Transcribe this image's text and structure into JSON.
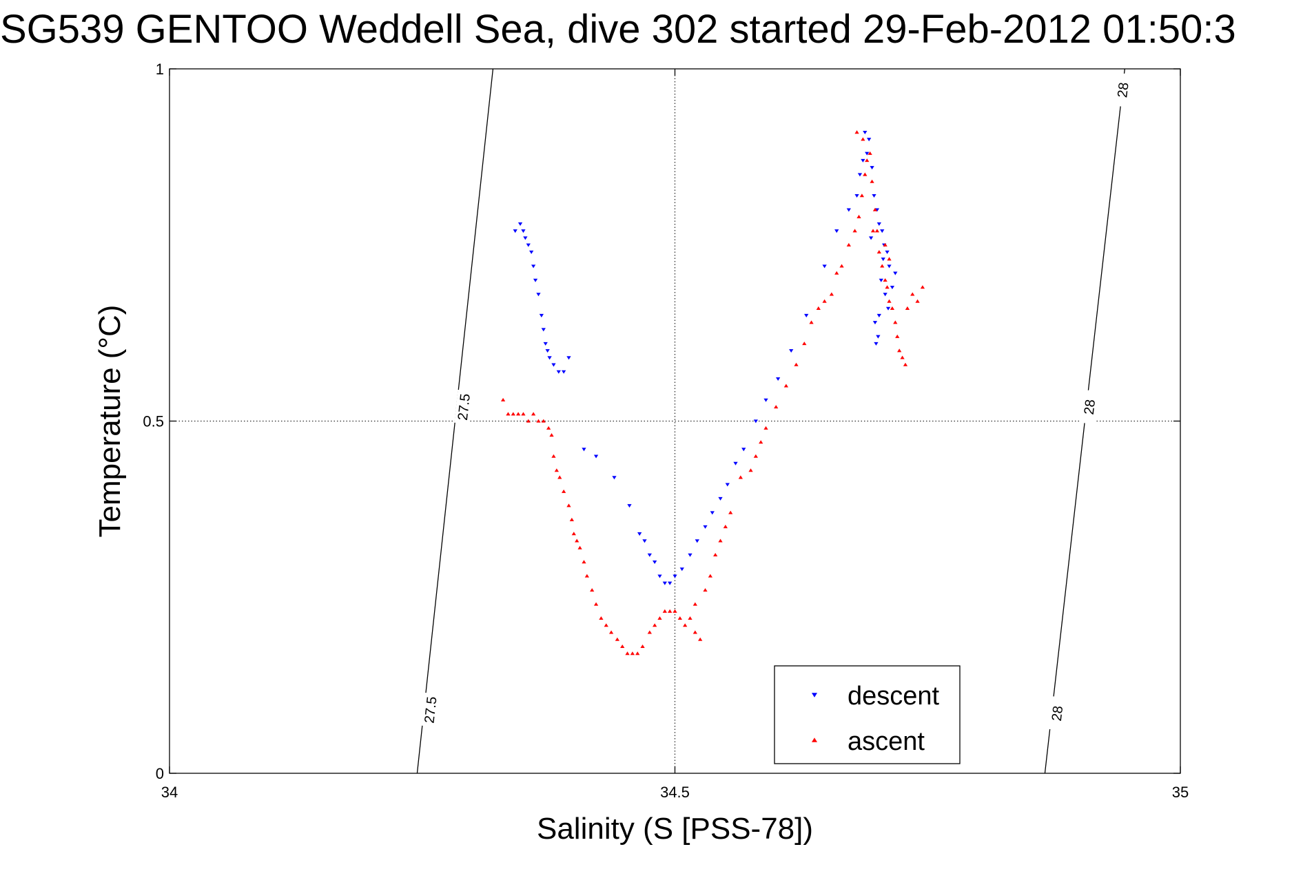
{
  "chart_data": {
    "type": "scatter",
    "title": "SG539 GENTOO Weddell Sea, dive 302 started 29-Feb-2012 01:50:3",
    "xlabel": "Salinity (S [PSS-78])",
    "ylabel": "Temperature (°C)",
    "xlim": [
      34,
      35
    ],
    "ylim": [
      0,
      1
    ],
    "x_ticks": [
      34,
      34.5,
      35
    ],
    "x_tick_labels": [
      "34",
      "34.5",
      "35"
    ],
    "y_ticks": [
      0,
      0.5,
      1
    ],
    "y_tick_labels": [
      "0",
      "0.5",
      "1"
    ],
    "grid": true,
    "legend_position": "bottom-right",
    "density_contours": [
      {
        "label": "27.5",
        "points": [
          [
            34.245,
            0
          ],
          [
            34.32,
            1
          ]
        ],
        "label_positions": [
          [
            34.258,
            0.09
          ],
          [
            34.291,
            0.52
          ]
        ]
      },
      {
        "label": "28",
        "points": [
          [
            34.866,
            0
          ],
          [
            34.945,
            1
          ]
        ],
        "label_positions": [
          [
            34.878,
            0.085
          ],
          [
            34.91,
            0.52
          ],
          [
            34.943,
            0.97
          ]
        ]
      }
    ],
    "series": [
      {
        "name": "descent",
        "color": "#0000ff",
        "marker": "triangle-down",
        "points": [
          [
            34.342,
            0.77
          ],
          [
            34.347,
            0.78
          ],
          [
            34.35,
            0.77
          ],
          [
            34.352,
            0.76
          ],
          [
            34.355,
            0.75
          ],
          [
            34.358,
            0.74
          ],
          [
            34.36,
            0.72
          ],
          [
            34.362,
            0.7
          ],
          [
            34.365,
            0.68
          ],
          [
            34.368,
            0.65
          ],
          [
            34.37,
            0.63
          ],
          [
            34.372,
            0.61
          ],
          [
            34.374,
            0.6
          ],
          [
            34.376,
            0.59
          ],
          [
            34.38,
            0.58
          ],
          [
            34.385,
            0.57
          ],
          [
            34.39,
            0.57
          ],
          [
            34.395,
            0.59
          ],
          [
            34.41,
            0.46
          ],
          [
            34.422,
            0.45
          ],
          [
            34.44,
            0.42
          ],
          [
            34.455,
            0.38
          ],
          [
            34.465,
            0.34
          ],
          [
            34.47,
            0.33
          ],
          [
            34.475,
            0.31
          ],
          [
            34.48,
            0.3
          ],
          [
            34.485,
            0.28
          ],
          [
            34.49,
            0.27
          ],
          [
            34.495,
            0.27
          ],
          [
            34.5,
            0.28
          ],
          [
            34.507,
            0.29
          ],
          [
            34.515,
            0.31
          ],
          [
            34.522,
            0.33
          ],
          [
            34.53,
            0.35
          ],
          [
            34.537,
            0.37
          ],
          [
            34.545,
            0.39
          ],
          [
            34.552,
            0.41
          ],
          [
            34.56,
            0.44
          ],
          [
            34.568,
            0.46
          ],
          [
            34.58,
            0.5
          ],
          [
            34.59,
            0.53
          ],
          [
            34.602,
            0.56
          ],
          [
            34.615,
            0.6
          ],
          [
            34.63,
            0.65
          ],
          [
            34.648,
            0.72
          ],
          [
            34.66,
            0.77
          ],
          [
            34.672,
            0.8
          ],
          [
            34.68,
            0.82
          ],
          [
            34.683,
            0.85
          ],
          [
            34.686,
            0.87
          ],
          [
            34.69,
            0.88
          ],
          [
            34.692,
            0.9
          ],
          [
            34.688,
            0.91
          ],
          [
            34.695,
            0.86
          ],
          [
            34.697,
            0.82
          ],
          [
            34.7,
            0.8
          ],
          [
            34.702,
            0.78
          ],
          [
            34.705,
            0.77
          ],
          [
            34.707,
            0.75
          ],
          [
            34.71,
            0.74
          ],
          [
            34.712,
            0.72
          ],
          [
            34.704,
            0.7
          ],
          [
            34.708,
            0.68
          ],
          [
            34.711,
            0.66
          ],
          [
            34.702,
            0.65
          ],
          [
            34.698,
            0.64
          ],
          [
            34.701,
            0.62
          ],
          [
            34.699,
            0.61
          ],
          [
            34.715,
            0.69
          ],
          [
            34.718,
            0.71
          ],
          [
            34.706,
            0.73
          ],
          [
            34.694,
            0.76
          ]
        ]
      },
      {
        "name": "ascent",
        "color": "#ff0000",
        "marker": "triangle-up",
        "points": [
          [
            34.33,
            0.53
          ],
          [
            34.335,
            0.51
          ],
          [
            34.34,
            0.51
          ],
          [
            34.345,
            0.51
          ],
          [
            34.35,
            0.51
          ],
          [
            34.355,
            0.5
          ],
          [
            34.36,
            0.51
          ],
          [
            34.365,
            0.5
          ],
          [
            34.37,
            0.5
          ],
          [
            34.375,
            0.49
          ],
          [
            34.378,
            0.48
          ],
          [
            34.38,
            0.45
          ],
          [
            34.383,
            0.43
          ],
          [
            34.386,
            0.42
          ],
          [
            34.39,
            0.4
          ],
          [
            34.395,
            0.38
          ],
          [
            34.398,
            0.36
          ],
          [
            34.4,
            0.34
          ],
          [
            34.403,
            0.33
          ],
          [
            34.406,
            0.32
          ],
          [
            34.41,
            0.3
          ],
          [
            34.413,
            0.28
          ],
          [
            34.418,
            0.26
          ],
          [
            34.422,
            0.24
          ],
          [
            34.427,
            0.22
          ],
          [
            34.432,
            0.21
          ],
          [
            34.437,
            0.2
          ],
          [
            34.443,
            0.19
          ],
          [
            34.448,
            0.18
          ],
          [
            34.453,
            0.17
          ],
          [
            34.458,
            0.17
          ],
          [
            34.463,
            0.17
          ],
          [
            34.468,
            0.18
          ],
          [
            34.475,
            0.2
          ],
          [
            34.48,
            0.21
          ],
          [
            34.485,
            0.22
          ],
          [
            34.49,
            0.23
          ],
          [
            34.495,
            0.23
          ],
          [
            34.5,
            0.23
          ],
          [
            34.505,
            0.22
          ],
          [
            34.51,
            0.21
          ],
          [
            34.515,
            0.22
          ],
          [
            34.52,
            0.2
          ],
          [
            34.525,
            0.19
          ],
          [
            34.52,
            0.24
          ],
          [
            34.53,
            0.26
          ],
          [
            34.535,
            0.28
          ],
          [
            34.54,
            0.31
          ],
          [
            34.545,
            0.33
          ],
          [
            34.55,
            0.35
          ],
          [
            34.555,
            0.37
          ],
          [
            34.565,
            0.42
          ],
          [
            34.575,
            0.43
          ],
          [
            34.58,
            0.45
          ],
          [
            34.585,
            0.47
          ],
          [
            34.59,
            0.49
          ],
          [
            34.6,
            0.52
          ],
          [
            34.61,
            0.55
          ],
          [
            34.62,
            0.58
          ],
          [
            34.628,
            0.61
          ],
          [
            34.635,
            0.64
          ],
          [
            34.642,
            0.66
          ],
          [
            34.648,
            0.67
          ],
          [
            34.655,
            0.68
          ],
          [
            34.66,
            0.71
          ],
          [
            34.665,
            0.72
          ],
          [
            34.672,
            0.75
          ],
          [
            34.678,
            0.77
          ],
          [
            34.682,
            0.79
          ],
          [
            34.685,
            0.82
          ],
          [
            34.688,
            0.85
          ],
          [
            34.69,
            0.87
          ],
          [
            34.693,
            0.88
          ],
          [
            34.686,
            0.9
          ],
          [
            34.68,
            0.91
          ],
          [
            34.695,
            0.84
          ],
          [
            34.698,
            0.8
          ],
          [
            34.7,
            0.77
          ],
          [
            34.702,
            0.74
          ],
          [
            34.705,
            0.72
          ],
          [
            34.708,
            0.7
          ],
          [
            34.71,
            0.69
          ],
          [
            34.712,
            0.67
          ],
          [
            34.715,
            0.66
          ],
          [
            34.718,
            0.64
          ],
          [
            34.72,
            0.62
          ],
          [
            34.722,
            0.6
          ],
          [
            34.725,
            0.59
          ],
          [
            34.728,
            0.58
          ],
          [
            34.73,
            0.66
          ],
          [
            34.735,
            0.68
          ],
          [
            34.74,
            0.67
          ],
          [
            34.745,
            0.69
          ],
          [
            34.712,
            0.73
          ],
          [
            34.708,
            0.75
          ],
          [
            34.696,
            0.77
          ]
        ]
      }
    ]
  }
}
